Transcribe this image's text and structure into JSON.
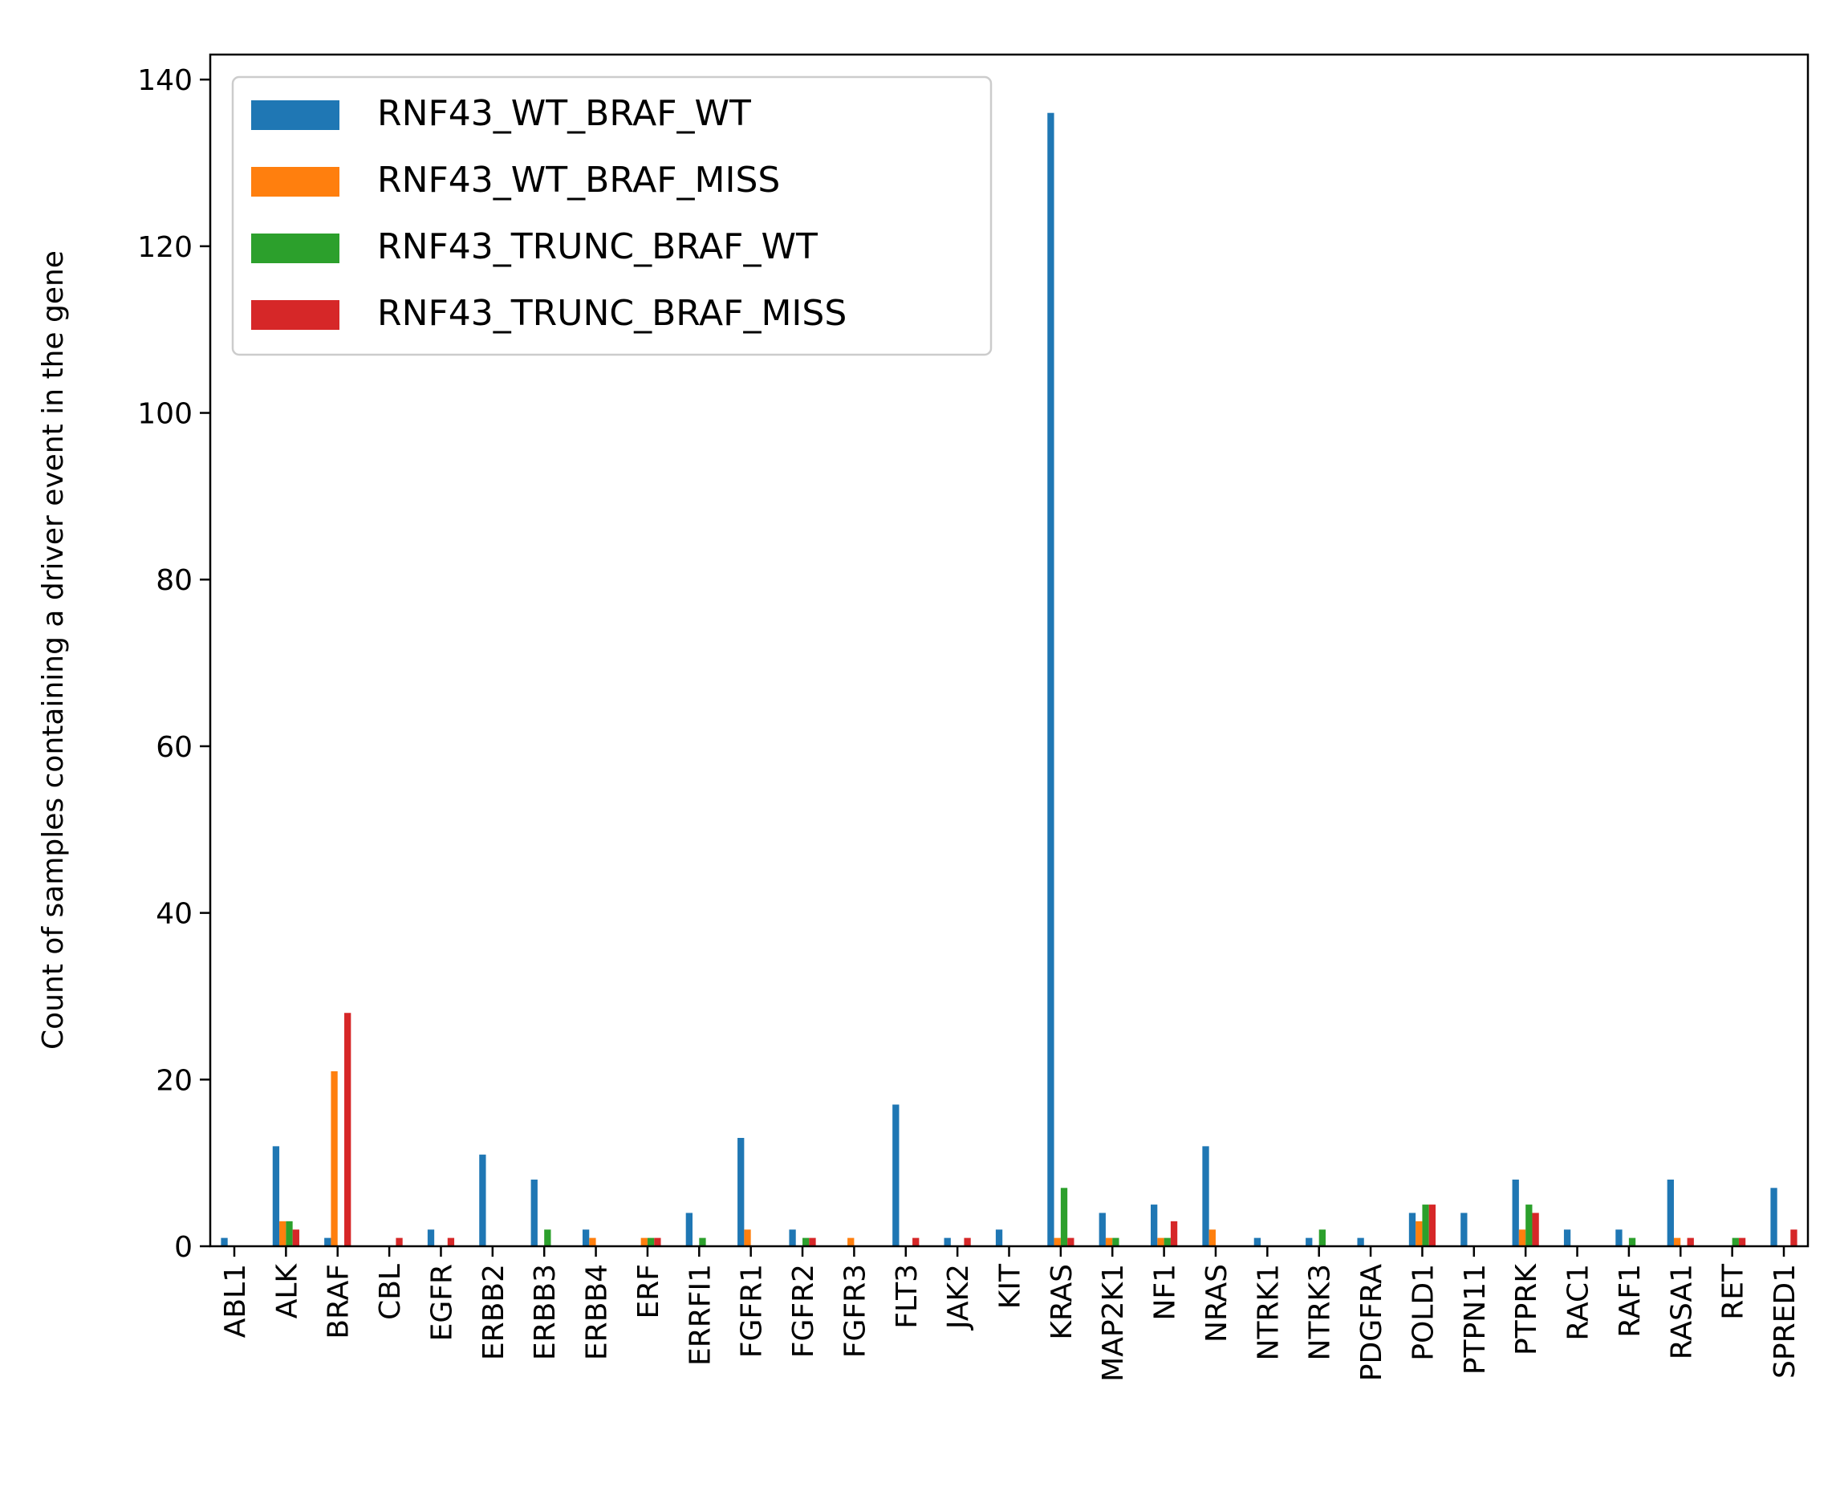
{
  "chart_data": {
    "type": "bar",
    "title": "",
    "xlabel": "",
    "ylabel": "Count of samples containing a driver event in the gene",
    "ylim": [
      0,
      143
    ],
    "yticks": [
      0,
      20,
      40,
      60,
      80,
      100,
      120,
      140
    ],
    "grid": false,
    "legend_position": "top-left",
    "categories": [
      "ABL1",
      "ALK",
      "BRAF",
      "CBL",
      "EGFR",
      "ERBB2",
      "ERBB3",
      "ERBB4",
      "ERF",
      "ERRFI1",
      "FGFR1",
      "FGFR2",
      "FGFR3",
      "FLT3",
      "JAK2",
      "KIT",
      "KRAS",
      "MAP2K1",
      "NF1",
      "NRAS",
      "NTRK1",
      "NTRK3",
      "PDGFRA",
      "POLD1",
      "PTPN11",
      "PTPRK",
      "RAC1",
      "RAF1",
      "RASA1",
      "RET",
      "SPRED1"
    ],
    "series": [
      {
        "name": "RNF43_WT_BRAF_WT",
        "color": "#1f77b4",
        "values": [
          1,
          12,
          1,
          0,
          2,
          11,
          8,
          2,
          0,
          4,
          13,
          2,
          0,
          17,
          1,
          2,
          136,
          4,
          5,
          12,
          1,
          1,
          1,
          4,
          4,
          8,
          2,
          2,
          8,
          0,
          7
        ]
      },
      {
        "name": "RNF43_WT_BRAF_MISS",
        "color": "#ff7f0e",
        "values": [
          0,
          3,
          21,
          0,
          0,
          0,
          0,
          1,
          1,
          0,
          2,
          0,
          1,
          0,
          0,
          0,
          1,
          1,
          1,
          2,
          0,
          0,
          0,
          3,
          0,
          2,
          0,
          0,
          1,
          0,
          0
        ]
      },
      {
        "name": "RNF43_TRUNC_BRAF_WT",
        "color": "#2ca02c",
        "values": [
          0,
          3,
          0,
          0,
          0,
          0,
          2,
          0,
          1,
          1,
          0,
          1,
          0,
          0,
          0,
          0,
          7,
          1,
          1,
          0,
          0,
          2,
          0,
          5,
          0,
          5,
          0,
          1,
          0,
          1,
          0
        ]
      },
      {
        "name": "RNF43_TRUNC_BRAF_MISS",
        "color": "#d62728",
        "values": [
          0,
          2,
          28,
          1,
          1,
          0,
          0,
          0,
          1,
          0,
          0,
          1,
          0,
          1,
          1,
          0,
          1,
          0,
          3,
          0,
          0,
          0,
          0,
          5,
          0,
          4,
          0,
          0,
          1,
          1,
          2
        ]
      }
    ]
  }
}
